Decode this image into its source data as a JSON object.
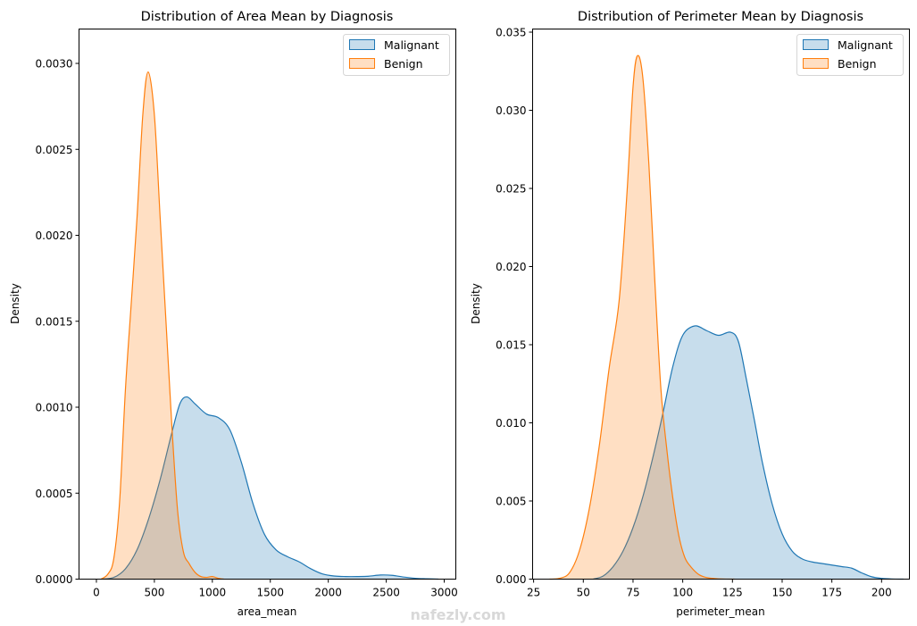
{
  "watermark": "nafezly.com",
  "chart_data": [
    {
      "type": "area",
      "title": "Distribution of Area Mean by Diagnosis",
      "xlabel": "area_mean",
      "ylabel": "Density",
      "xlim": [
        -150,
        3100
      ],
      "ylim": [
        0,
        0.0032
      ],
      "xticks": [
        0,
        500,
        1000,
        1500,
        2000,
        2500,
        3000
      ],
      "xtick_labels": [
        "0",
        "500",
        "1000",
        "1500",
        "2000",
        "2500",
        "3000"
      ],
      "yticks": [
        0,
        0.0005,
        0.001,
        0.0015,
        0.002,
        0.0025,
        0.003
      ],
      "ytick_labels": [
        "0.0000",
        "0.0005",
        "0.0010",
        "0.0015",
        "0.0020",
        "0.0025",
        "0.0030"
      ],
      "grid": false,
      "legend": {
        "position": "top-right",
        "entries": [
          "Malignant",
          "Benign"
        ]
      },
      "series": [
        {
          "name": "Malignant",
          "color": "#1f77b4",
          "x": [
            40,
            150,
            250,
            350,
            450,
            550,
            650,
            720,
            780,
            850,
            950,
            1050,
            1150,
            1250,
            1350,
            1450,
            1550,
            1650,
            1750,
            1850,
            1950,
            2050,
            2150,
            2250,
            2350,
            2450,
            2550,
            2650,
            2750,
            2850,
            2950
          ],
          "y": [
            0,
            1e-05,
            6e-05,
            0.00017,
            0.00035,
            0.00058,
            0.00085,
            0.00102,
            0.00106,
            0.00102,
            0.00096,
            0.00094,
            0.00087,
            0.00068,
            0.00044,
            0.00026,
            0.00017,
            0.00013,
            0.0001,
            6e-05,
            3e-05,
            1.8e-05,
            1.5e-05,
            1.5e-05,
            1.7e-05,
            2.4e-05,
            2.2e-05,
            1.2e-05,
            5e-06,
            2e-06,
            0
          ]
        },
        {
          "name": "Benign",
          "color": "#ff7f0e",
          "x": [
            40,
            100,
            150,
            200,
            250,
            300,
            350,
            400,
            446,
            500,
            550,
            600,
            650,
            700,
            750,
            800,
            850,
            900,
            950,
            1000,
            1050,
            1100
          ],
          "y": [
            0,
            3e-05,
            0.00012,
            0.00045,
            0.0011,
            0.0016,
            0.0021,
            0.0027,
            0.00295,
            0.0027,
            0.0021,
            0.0015,
            0.0009,
            0.0004,
            0.00016,
            9e-05,
            4e-05,
            1.5e-05,
            1e-05,
            1.5e-05,
            5e-06,
            0
          ]
        }
      ]
    },
    {
      "type": "area",
      "title": "Distribution of Perimeter Mean by Diagnosis",
      "xlabel": "perimeter_mean",
      "ylabel": "Density",
      "xlim": [
        24.5,
        214
      ],
      "ylim": [
        0,
        0.0352
      ],
      "xticks": [
        25,
        50,
        75,
        100,
        125,
        150,
        175,
        200
      ],
      "xtick_labels": [
        "25",
        "50",
        "75",
        "100",
        "125",
        "150",
        "175",
        "200"
      ],
      "yticks": [
        0,
        0.005,
        0.01,
        0.015,
        0.02,
        0.025,
        0.03,
        0.035
      ],
      "ytick_labels": [
        "0.000",
        "0.005",
        "0.010",
        "0.015",
        "0.020",
        "0.025",
        "0.030",
        "0.035"
      ],
      "grid": false,
      "legend": {
        "position": "top-right",
        "entries": [
          "Malignant",
          "Benign"
        ]
      },
      "series": [
        {
          "name": "Malignant",
          "color": "#1f77b4",
          "x": [
            55,
            60,
            65,
            70,
            75,
            80,
            85,
            90,
            95,
            100,
            106,
            112,
            118,
            124,
            128,
            132,
            136,
            140,
            145,
            150,
            155,
            160,
            165,
            170,
            175,
            180,
            185,
            190,
            195,
            200,
            205,
            211
          ],
          "y": [
            0,
            0.0002,
            0.0008,
            0.0018,
            0.0033,
            0.0053,
            0.0078,
            0.0106,
            0.0136,
            0.0156,
            0.0162,
            0.0159,
            0.0156,
            0.0158,
            0.0152,
            0.0128,
            0.0102,
            0.0075,
            0.0048,
            0.0029,
            0.0018,
            0.0013,
            0.0011,
            0.001,
            0.0009,
            0.0008,
            0.0007,
            0.0004,
            0.00015,
            5e-05,
            1e-05,
            0
          ]
        },
        {
          "name": "Benign",
          "color": "#ff7f0e",
          "x": [
            33,
            38,
            43,
            48,
            53,
            58,
            63,
            68,
            72,
            75,
            77.3,
            80,
            83,
            86,
            89,
            92,
            95,
            98,
            101,
            104,
            108,
            112,
            116,
            120,
            126
          ],
          "y": [
            0,
            5e-05,
            0.0004,
            0.0018,
            0.0045,
            0.0085,
            0.0135,
            0.0178,
            0.0248,
            0.0315,
            0.0335,
            0.032,
            0.0265,
            0.019,
            0.0122,
            0.0083,
            0.0052,
            0.0028,
            0.0014,
            0.0008,
            0.0003,
            0.0001,
            4e-05,
            1e-05,
            0
          ]
        }
      ]
    }
  ]
}
